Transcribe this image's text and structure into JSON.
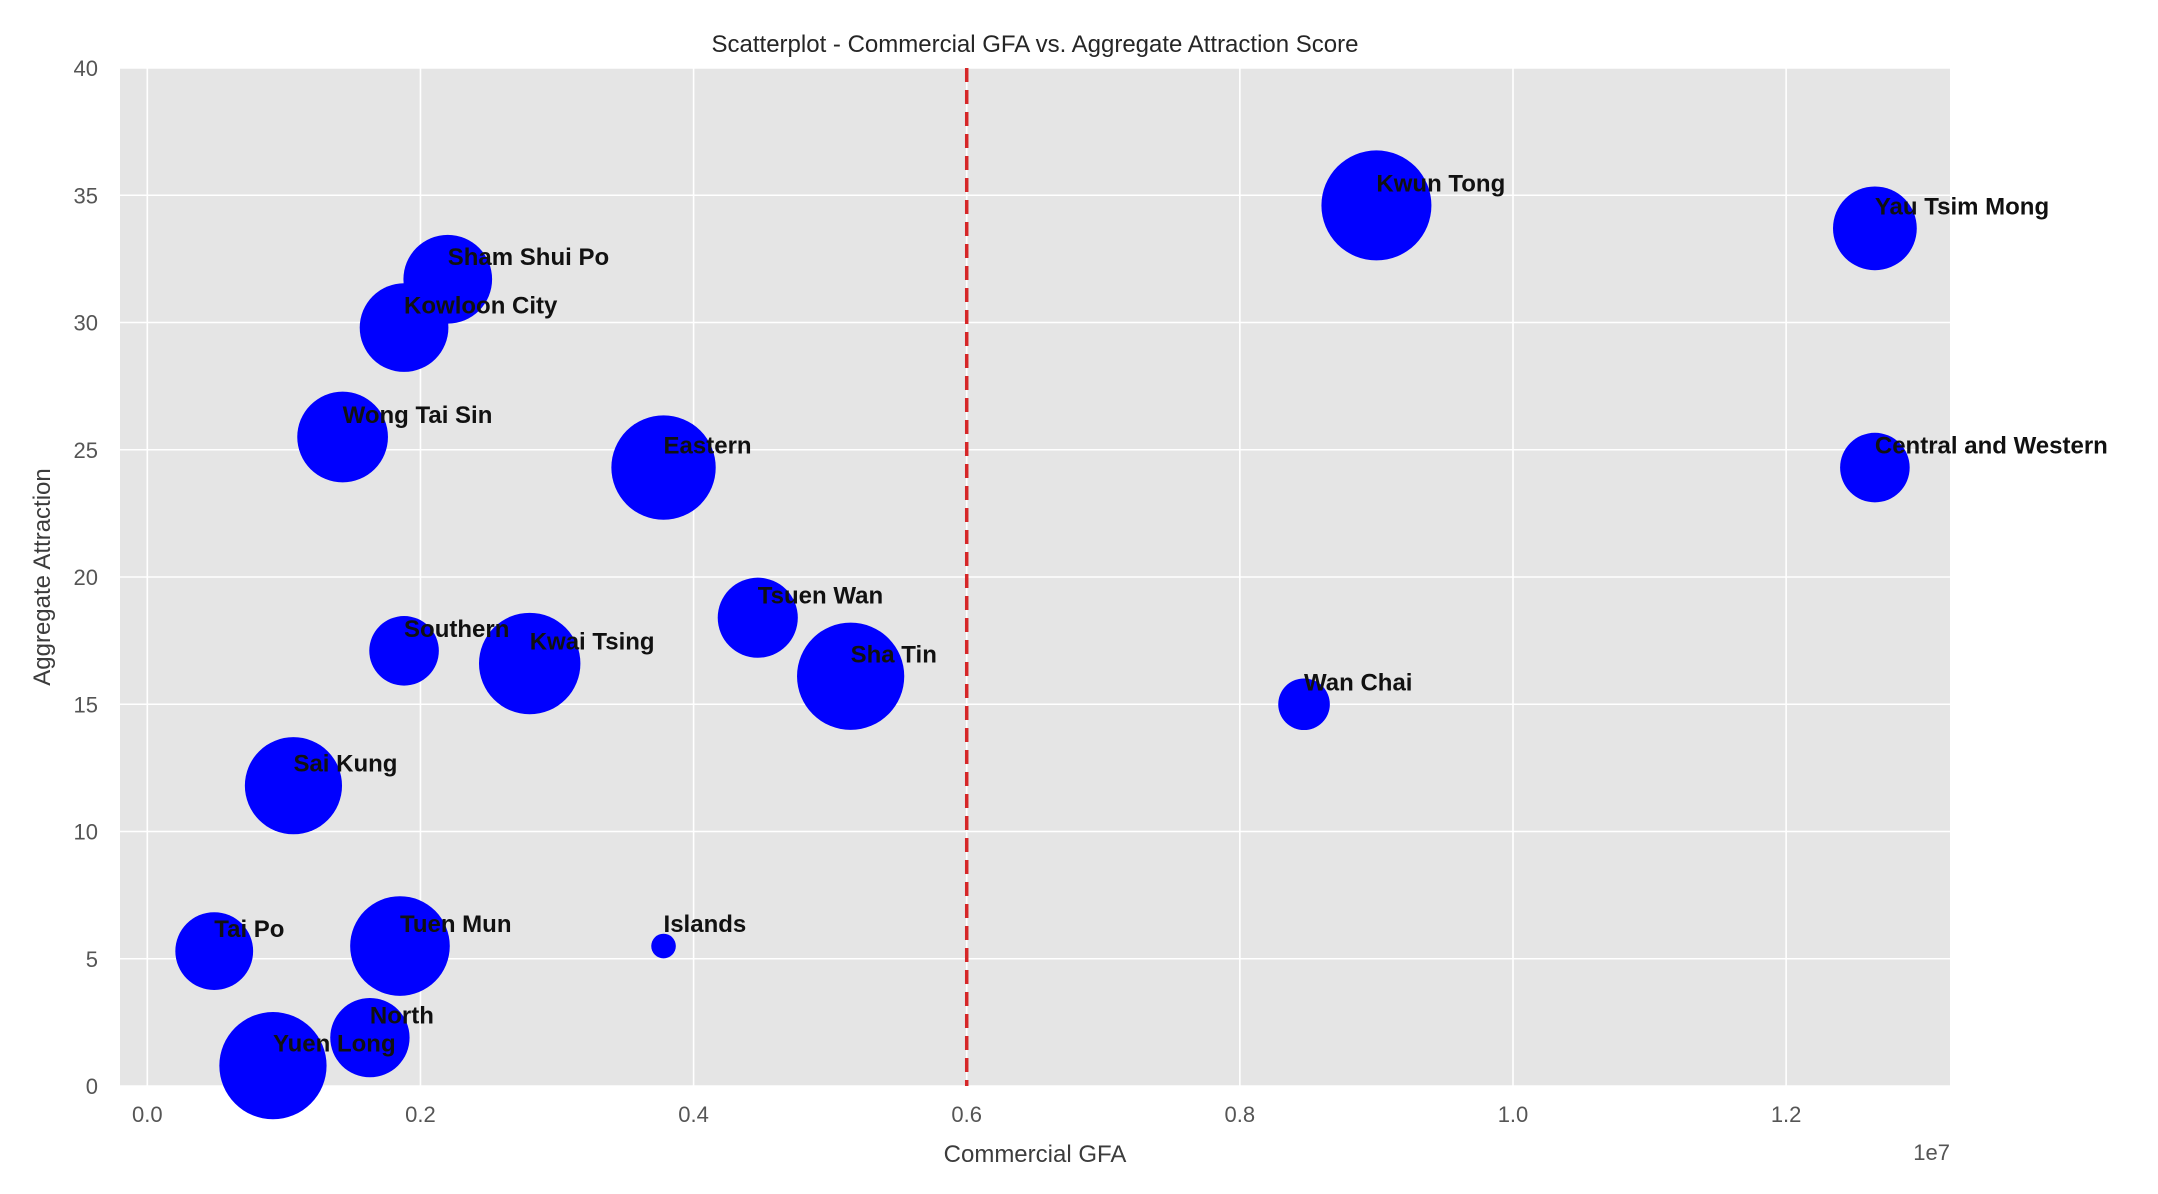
{
  "chart_data": {
    "type": "scatter",
    "title": "Scatterplot - Commercial GFA vs. Aggregate Attraction Score",
    "xlabel": "Commercial GFA",
    "ylabel": "Aggregate Attraction",
    "x_offset_text": "1e7",
    "xlim": [
      -0.02,
      1.32
    ],
    "ylim": [
      0,
      40
    ],
    "x_ticks": [
      0.0,
      0.2,
      0.4,
      0.6,
      0.8,
      1.0,
      1.2
    ],
    "x_tick_labels": [
      "0.0",
      "0.2",
      "0.4",
      "0.6",
      "0.8",
      "1.0",
      "1.2"
    ],
    "y_ticks": [
      0,
      5,
      10,
      15,
      20,
      25,
      30,
      35,
      40
    ],
    "y_tick_labels": [
      "0",
      "5",
      "10",
      "15",
      "20",
      "25",
      "30",
      "35",
      "40"
    ],
    "grid": true,
    "background_color": "#e5e5e5",
    "grid_color": "#ffffff",
    "marker_color": "#0000ff",
    "reference_line": {
      "x": 0.6,
      "color": "#d62728",
      "style": "dashed"
    },
    "points": [
      {
        "name": "Kwun Tong",
        "x": 0.9,
        "y": 34.6,
        "size": 1.0
      },
      {
        "name": "Yau Tsim Mong",
        "x": 1.265,
        "y": 33.7,
        "size": 0.58
      },
      {
        "name": "Sham Shui Po",
        "x": 0.22,
        "y": 31.7,
        "size": 0.65
      },
      {
        "name": "Kowloon City",
        "x": 0.188,
        "y": 29.8,
        "size": 0.65
      },
      {
        "name": "Wong Tai Sin",
        "x": 0.143,
        "y": 25.5,
        "size": 0.68
      },
      {
        "name": "Eastern",
        "x": 0.378,
        "y": 24.3,
        "size": 0.9
      },
      {
        "name": "Central and Western",
        "x": 1.265,
        "y": 24.3,
        "size": 0.4
      },
      {
        "name": "Tsuen Wan",
        "x": 0.447,
        "y": 18.4,
        "size": 0.53
      },
      {
        "name": "Southern",
        "x": 0.188,
        "y": 17.1,
        "size": 0.4
      },
      {
        "name": "Kwai Tsing",
        "x": 0.28,
        "y": 16.6,
        "size": 0.85
      },
      {
        "name": "Sha Tin",
        "x": 0.515,
        "y": 16.1,
        "size": 0.95
      },
      {
        "name": "Wan Chai",
        "x": 0.847,
        "y": 15.0,
        "size": 0.22
      },
      {
        "name": "Sai Kung",
        "x": 0.107,
        "y": 11.8,
        "size": 0.78
      },
      {
        "name": "Tai Po",
        "x": 0.049,
        "y": 5.3,
        "size": 0.5
      },
      {
        "name": "Tuen Mun",
        "x": 0.185,
        "y": 5.5,
        "size": 0.82
      },
      {
        "name": "Islands",
        "x": 0.378,
        "y": 5.5,
        "size": 0.05
      },
      {
        "name": "North",
        "x": 0.163,
        "y": 1.9,
        "size": 0.52
      },
      {
        "name": "Yuen Long",
        "x": 0.092,
        "y": 0.8,
        "size": 0.95
      }
    ]
  }
}
